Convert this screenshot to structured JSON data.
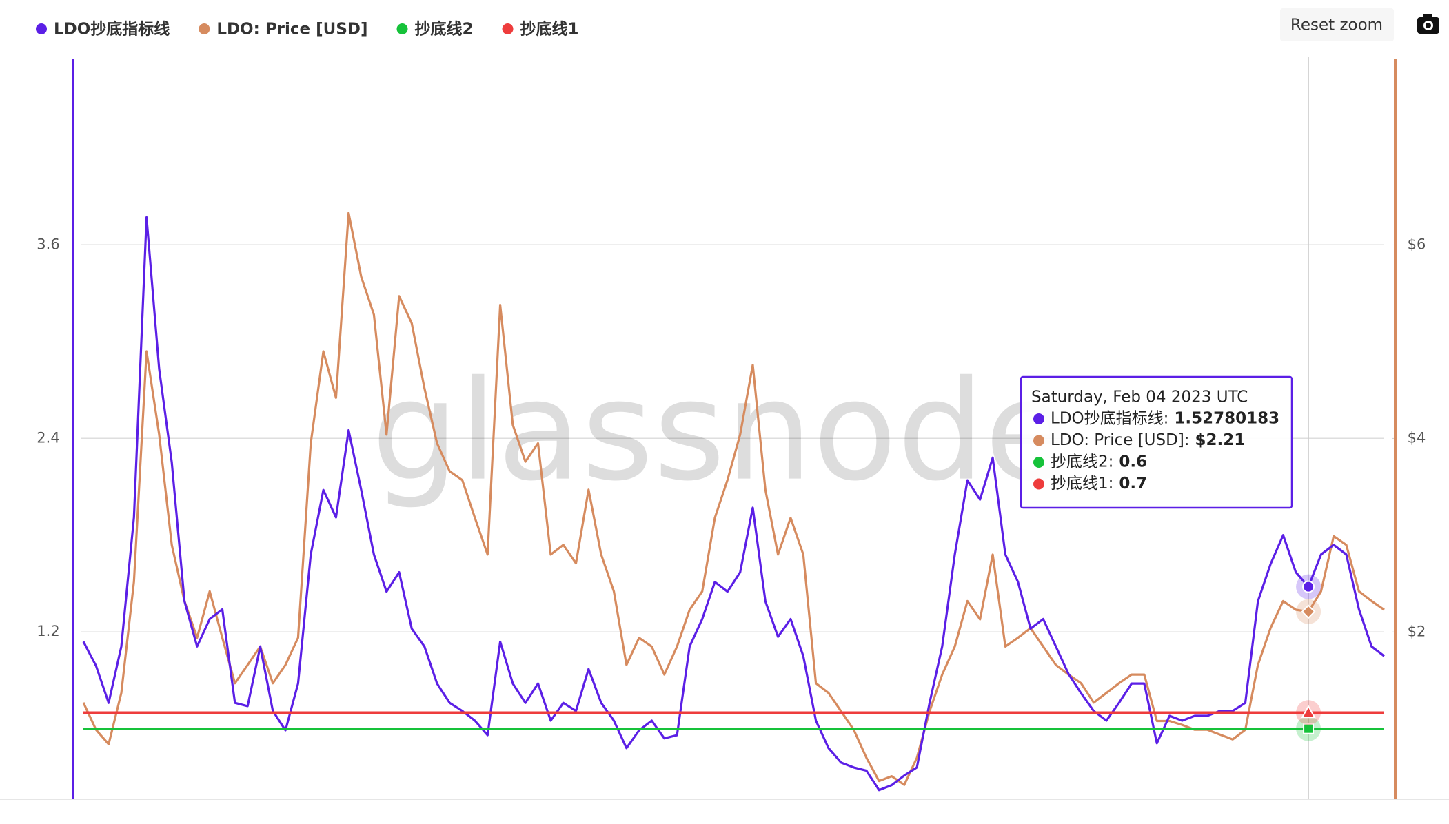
{
  "chart_data": {
    "type": "line",
    "watermark": "glassnode",
    "button": "Reset zoom",
    "ylim": [
      0.163,
      4.763
    ],
    "yticks": [
      1.2,
      2.4,
      3.6
    ],
    "y2lim": [
      0.272,
      7.94
    ],
    "y2ticks": [
      {
        "value": 2,
        "label": "$2"
      },
      {
        "value": 4,
        "label": "$4"
      },
      {
        "value": 6,
        "label": "$6"
      }
    ],
    "grid": true,
    "legend": "top-left",
    "series": [
      {
        "name": "LDO抄底指标线",
        "color": "#5b1fe6",
        "axis": "y",
        "values": [
          1.14,
          0.99,
          0.76,
          1.11,
          1.91,
          3.77,
          2.83,
          2.25,
          1.39,
          1.11,
          1.28,
          1.34,
          0.76,
          0.74,
          1.11,
          0.71,
          0.59,
          0.88,
          1.68,
          2.08,
          1.91,
          2.45,
          2.08,
          1.68,
          1.45,
          1.57,
          1.22,
          1.11,
          0.88,
          0.76,
          0.71,
          0.65,
          0.56,
          1.14,
          0.88,
          0.76,
          0.88,
          0.65,
          0.76,
          0.71,
          0.97,
          0.76,
          0.65,
          0.48,
          0.59,
          0.65,
          0.54,
          0.56,
          1.11,
          1.28,
          1.51,
          1.45,
          1.57,
          1.97,
          1.39,
          1.17,
          1.28,
          1.05,
          0.65,
          0.48,
          0.39,
          0.36,
          0.34,
          0.22,
          0.25,
          0.31,
          0.36,
          0.76,
          1.11,
          1.68,
          2.14,
          2.02,
          2.28,
          1.68,
          1.51,
          1.22,
          1.28,
          1.11,
          0.94,
          0.82,
          0.71,
          0.65,
          0.76,
          0.88,
          0.88,
          0.51,
          0.68,
          0.65,
          0.68,
          0.68,
          0.71,
          0.71,
          0.76,
          1.39,
          1.62,
          1.8,
          1.57,
          1.48,
          1.68,
          1.74,
          1.68,
          1.34,
          1.11,
          1.05
        ]
      },
      {
        "name": "LDO: Price [USD]",
        "color": "#d68b5f",
        "axis": "y2",
        "values": [
          1.27,
          0.99,
          0.84,
          1.37,
          2.52,
          4.9,
          4.04,
          2.9,
          2.32,
          1.94,
          2.42,
          1.94,
          1.47,
          1.66,
          1.85,
          1.47,
          1.66,
          1.94,
          3.95,
          4.9,
          4.42,
          6.33,
          5.67,
          5.28,
          4.04,
          5.47,
          5.19,
          4.52,
          3.95,
          3.66,
          3.57,
          3.18,
          2.8,
          5.38,
          4.14,
          3.76,
          3.95,
          2.8,
          2.9,
          2.71,
          3.47,
          2.8,
          2.42,
          1.66,
          1.94,
          1.85,
          1.56,
          1.85,
          2.23,
          2.42,
          3.18,
          3.57,
          4.04,
          4.76,
          3.47,
          2.8,
          3.18,
          2.8,
          1.47,
          1.37,
          1.18,
          0.99,
          0.7,
          0.46,
          0.51,
          0.42,
          0.7,
          1.18,
          1.56,
          1.85,
          2.32,
          2.13,
          2.8,
          1.85,
          1.94,
          2.04,
          1.85,
          1.66,
          1.56,
          1.47,
          1.27,
          1.37,
          1.47,
          1.56,
          1.56,
          1.08,
          1.08,
          1.04,
          0.99,
          0.99,
          0.94,
          0.89,
          0.99,
          1.66,
          2.04,
          2.32,
          2.23,
          2.21,
          2.42,
          2.99,
          2.9,
          2.42,
          2.32,
          2.23
        ]
      },
      {
        "name": "抄底线2",
        "color": "#16c23a",
        "axis": "y",
        "values": [
          0.6,
          0.6,
          0.6,
          0.6,
          0.6,
          0.6,
          0.6,
          0.6,
          0.6,
          0.6,
          0.6,
          0.6,
          0.6,
          0.6,
          0.6,
          0.6,
          0.6,
          0.6,
          0.6,
          0.6,
          0.6,
          0.6,
          0.6,
          0.6,
          0.6,
          0.6,
          0.6,
          0.6,
          0.6,
          0.6,
          0.6,
          0.6,
          0.6,
          0.6,
          0.6,
          0.6,
          0.6,
          0.6,
          0.6,
          0.6,
          0.6,
          0.6,
          0.6,
          0.6,
          0.6,
          0.6,
          0.6,
          0.6,
          0.6,
          0.6,
          0.6,
          0.6,
          0.6,
          0.6,
          0.6,
          0.6,
          0.6,
          0.6,
          0.6,
          0.6,
          0.6,
          0.6,
          0.6,
          0.6,
          0.6,
          0.6,
          0.6,
          0.6,
          0.6,
          0.6,
          0.6,
          0.6,
          0.6,
          0.6,
          0.6,
          0.6,
          0.6,
          0.6,
          0.6,
          0.6,
          0.6,
          0.6,
          0.6,
          0.6,
          0.6,
          0.6,
          0.6,
          0.6,
          0.6,
          0.6,
          0.6,
          0.6,
          0.6,
          0.6,
          0.6,
          0.6,
          0.6,
          0.6,
          0.6,
          0.6,
          0.6,
          0.6,
          0.6,
          0.6
        ]
      },
      {
        "name": "抄底线1",
        "color": "#ee3c3c",
        "axis": "y",
        "values": [
          0.7,
          0.7,
          0.7,
          0.7,
          0.7,
          0.7,
          0.7,
          0.7,
          0.7,
          0.7,
          0.7,
          0.7,
          0.7,
          0.7,
          0.7,
          0.7,
          0.7,
          0.7,
          0.7,
          0.7,
          0.7,
          0.7,
          0.7,
          0.7,
          0.7,
          0.7,
          0.7,
          0.7,
          0.7,
          0.7,
          0.7,
          0.7,
          0.7,
          0.7,
          0.7,
          0.7,
          0.7,
          0.7,
          0.7,
          0.7,
          0.7,
          0.7,
          0.7,
          0.7,
          0.7,
          0.7,
          0.7,
          0.7,
          0.7,
          0.7,
          0.7,
          0.7,
          0.7,
          0.7,
          0.7,
          0.7,
          0.7,
          0.7,
          0.7,
          0.7,
          0.7,
          0.7,
          0.7,
          0.7,
          0.7,
          0.7,
          0.7,
          0.7,
          0.7,
          0.7,
          0.7,
          0.7,
          0.7,
          0.7,
          0.7,
          0.7,
          0.7,
          0.7,
          0.7,
          0.7,
          0.7,
          0.7,
          0.7,
          0.7,
          0.7,
          0.7,
          0.7,
          0.7,
          0.7,
          0.7,
          0.7,
          0.7,
          0.7,
          0.7,
          0.7,
          0.7,
          0.7,
          0.7,
          0.7,
          0.7,
          0.7,
          0.7,
          0.7,
          0.7
        ]
      }
    ],
    "tooltip": {
      "title": "Saturday, Feb 04 2023 UTC",
      "items": [
        {
          "name": "LDO抄底指标线:",
          "value": 1.52780183
        },
        {
          "name": "LDO: Price [USD]:",
          "value": 2.21,
          "label": "$2.21"
        },
        {
          "name": "抄底线2:",
          "value": 0.6
        },
        {
          "name": "抄底线1:",
          "value": 0.7
        }
      ]
    }
  }
}
